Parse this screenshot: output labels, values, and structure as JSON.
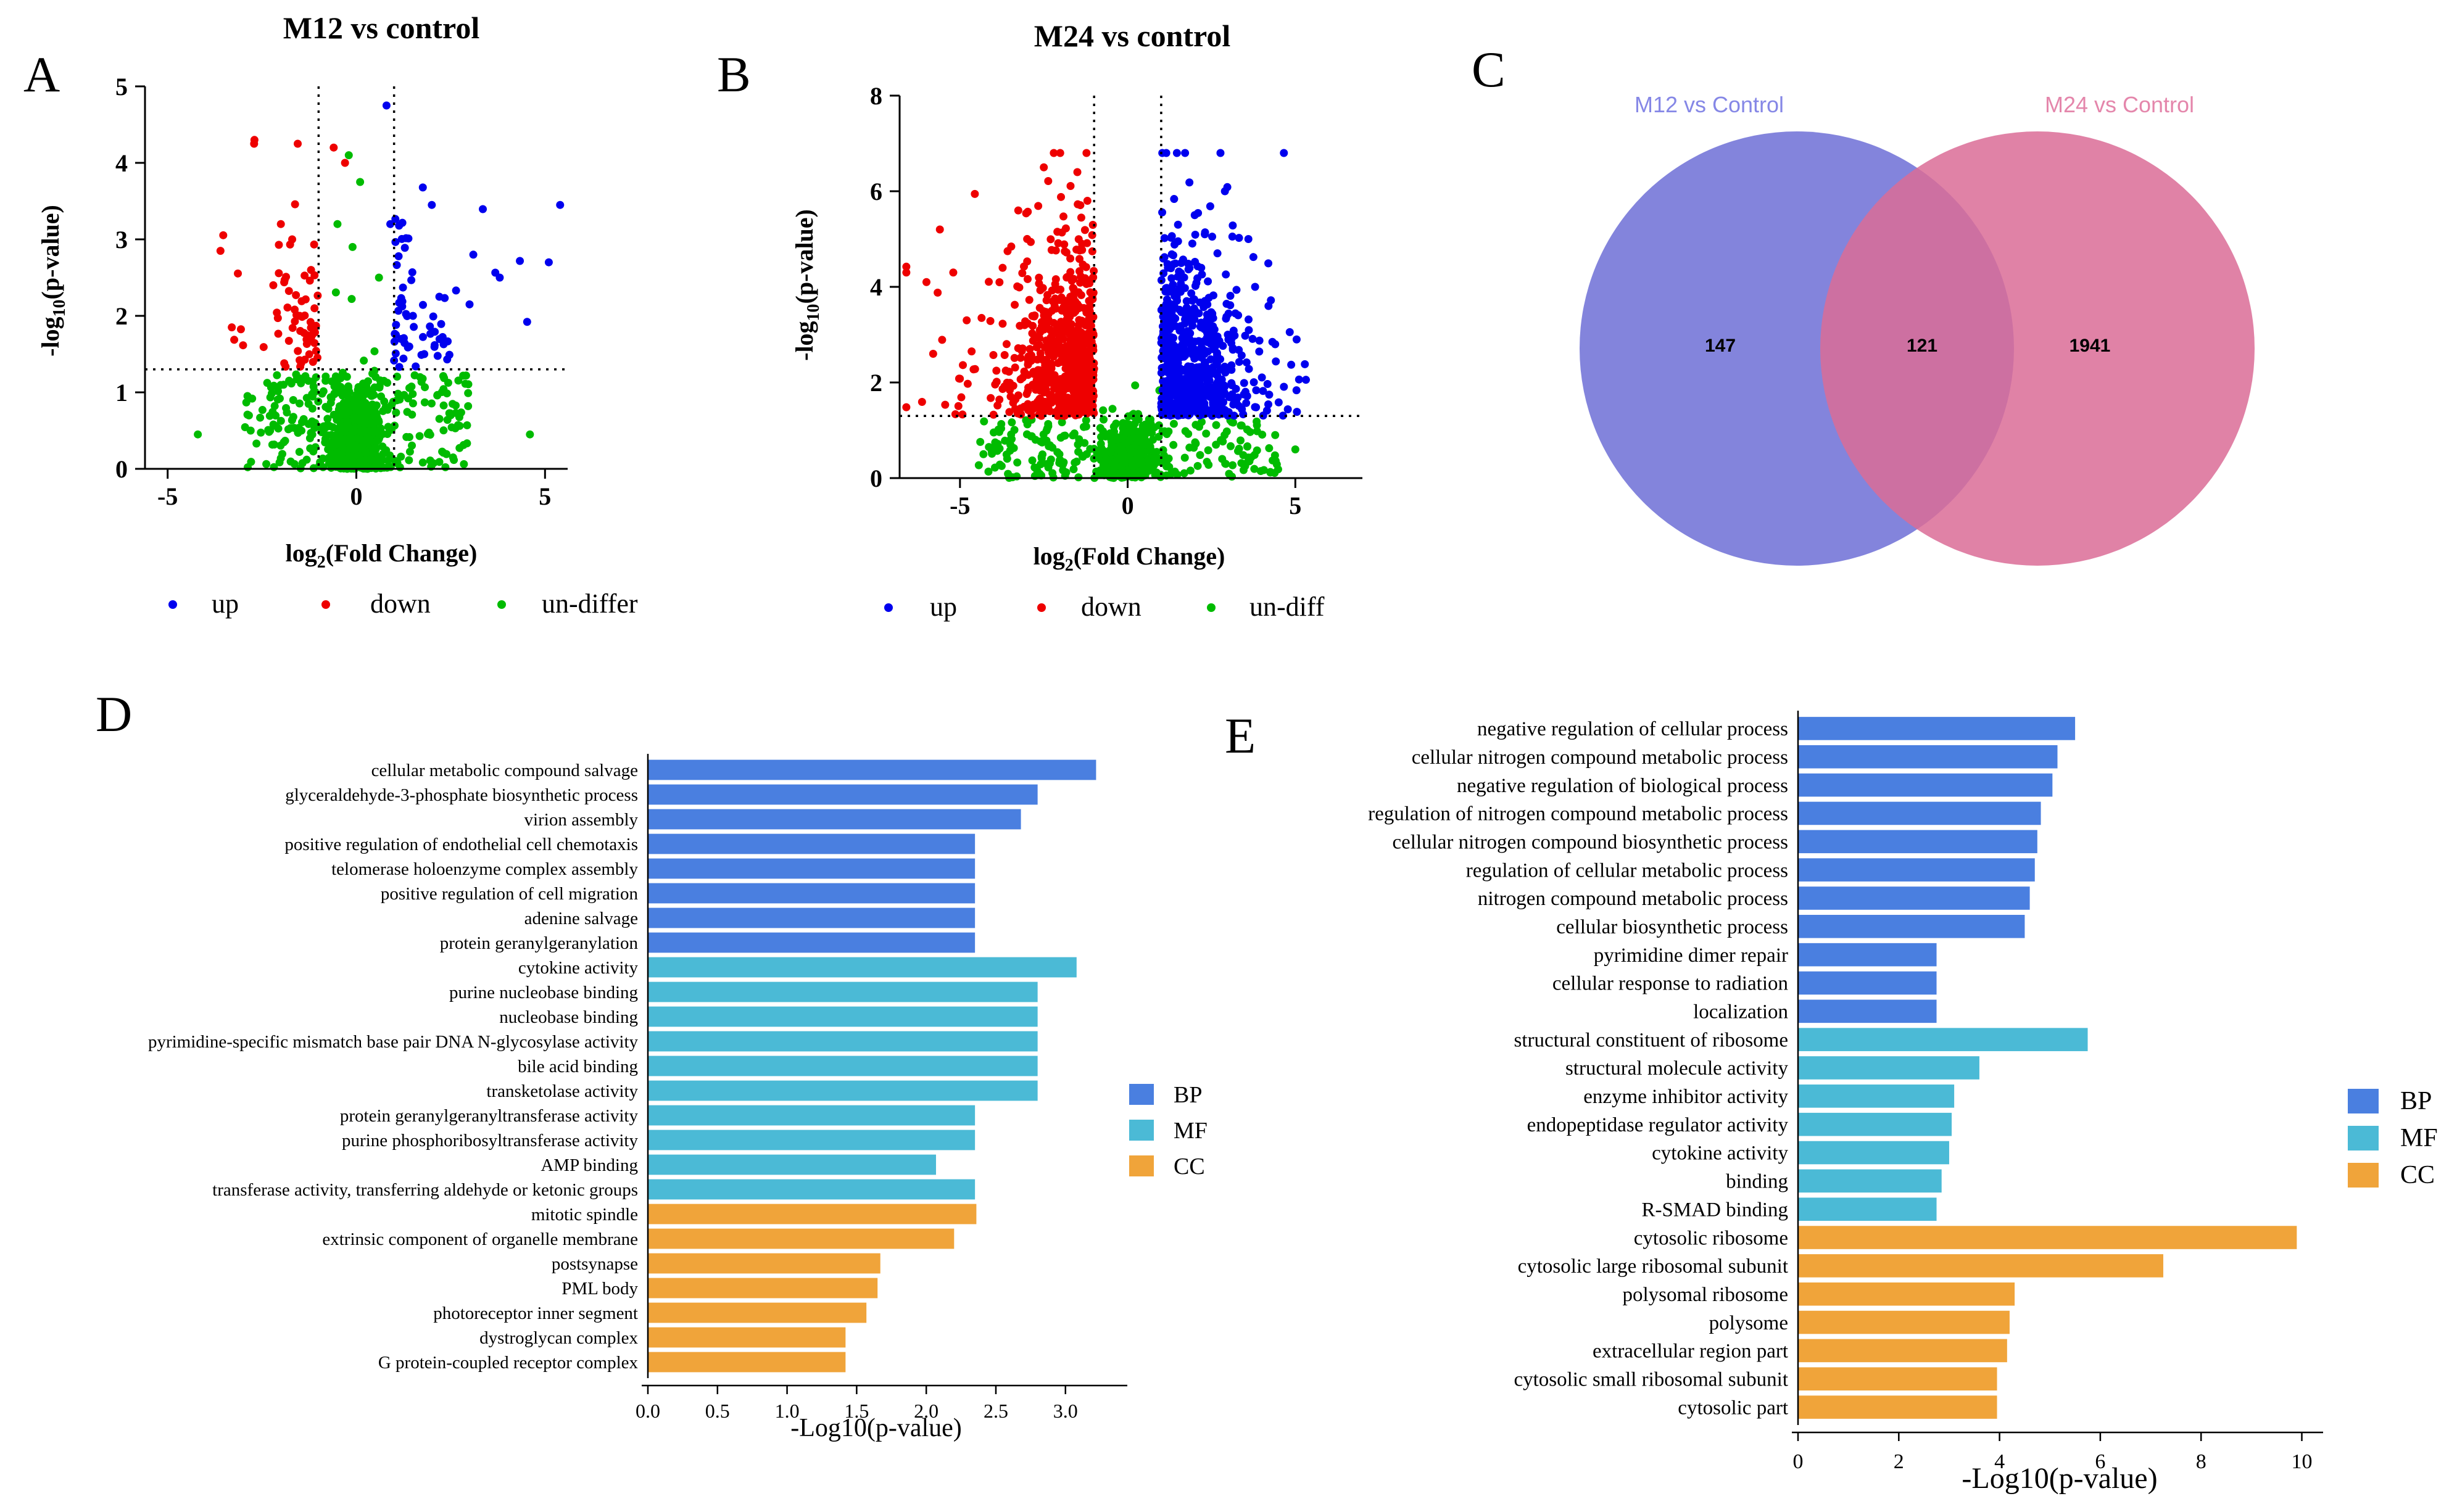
{
  "colors": {
    "up": "#0000ee",
    "down": "#ee0000",
    "undiff": "#00bb00",
    "BP": "#4a7fe0",
    "MF": "#4bbad6",
    "CC": "#f0a43a",
    "venn_left": "#6d6fd6",
    "venn_right": "#db6c96"
  },
  "panel_letters": {
    "A": "A",
    "B": "B",
    "C": "C",
    "D": "D",
    "E": "E"
  },
  "chart_data": [
    {
      "id": "A",
      "type": "scatter",
      "title": "M12  vs control",
      "xlabel": "log2(Fold Change)",
      "ylabel": "-log10(p-value)",
      "xlim": [
        -5.6,
        5.6
      ],
      "ylim": [
        0,
        5
      ],
      "xticks": [
        -5,
        0,
        5
      ],
      "yticks": [
        0,
        1,
        2,
        3,
        4,
        5
      ],
      "thresholds": {
        "fc": 1,
        "p": 1.3
      },
      "legend": [
        "up",
        "down",
        "un-differ"
      ],
      "n_up": 60,
      "n_down": 60,
      "n_undiff": 800,
      "cloud_spread": 3.0,
      "series": [
        {
          "name": "up",
          "points": [
            [
              0.8,
              4.75
            ],
            [
              2.0,
              3.45
            ],
            [
              5.4,
              3.45
            ],
            [
              3.1,
              2.8
            ],
            [
              5.1,
              2.7
            ],
            [
              3.8,
              2.5
            ],
            [
              2.2,
              2.25
            ],
            [
              3.0,
              2.15
            ],
            [
              1.8,
              1.5
            ],
            [
              1.5,
              2.0
            ],
            [
              0.9,
              3.2
            ]
          ]
        },
        {
          "name": "down",
          "points": [
            [
              -2.7,
              4.3
            ],
            [
              -0.6,
              4.2
            ],
            [
              -0.3,
              4.0
            ],
            [
              -3.6,
              2.85
            ],
            [
              -2.0,
              3.2
            ],
            [
              -1.7,
              3.0
            ],
            [
              -3.3,
              1.85
            ],
            [
              -1.5,
              2.0
            ],
            [
              -2.2,
              2.4
            ],
            [
              -1.2,
              2.6
            ]
          ]
        },
        {
          "name": "un-differ",
          "points": [
            [
              -4.2,
              0.45
            ],
            [
              4.6,
              0.45
            ],
            [
              -2.8,
              0.5
            ],
            [
              2.5,
              0.7
            ],
            [
              -0.2,
              4.1
            ],
            [
              0.1,
              3.75
            ],
            [
              -0.5,
              3.2
            ],
            [
              0.6,
              2.5
            ],
            [
              -0.1,
              2.9
            ]
          ]
        }
      ]
    },
    {
      "id": "B",
      "type": "scatter",
      "title": "M24  vs control",
      "xlabel": "log2(Fold Change)",
      "ylabel": "-log10(p-value)",
      "xlim": [
        -6.8,
        7.0
      ],
      "ylim": [
        0,
        8
      ],
      "xticks": [
        -5,
        0,
        5
      ],
      "yticks": [
        0,
        2,
        4,
        6,
        8
      ],
      "thresholds": {
        "fc": 1,
        "p": 1.3
      },
      "legend": [
        "up",
        "down",
        "un-diff"
      ],
      "n_up": 700,
      "n_down": 700,
      "n_undiff": 700,
      "cloud_spread": 4.5,
      "series": [
        {
          "name": "up",
          "points": [
            [
              2.9,
              6.0
            ],
            [
              2.3,
              5.1
            ],
            [
              3.6,
              5.0
            ],
            [
              3.8,
              4.0
            ],
            [
              4.2,
              3.6
            ],
            [
              4.4,
              2.8
            ],
            [
              2.0,
              5.5
            ],
            [
              1.2,
              4.4
            ]
          ]
        },
        {
          "name": "down",
          "points": [
            [
              -5.6,
              5.2
            ],
            [
              -6.6,
              4.3
            ],
            [
              -6.0,
              4.1
            ],
            [
              -5.2,
              4.3
            ],
            [
              -2.5,
              6.5
            ],
            [
              -1.5,
              6.4
            ],
            [
              -1.2,
              5.8
            ],
            [
              -4.8,
              3.3
            ],
            [
              -5.8,
              2.6
            ]
          ]
        },
        {
          "name": "un-diff",
          "points": [
            [
              5.0,
              0.6
            ],
            [
              4.4,
              0.9
            ],
            [
              -4.3,
              0.5
            ],
            [
              3.4,
              1.1
            ],
            [
              -3.5,
              0.8
            ]
          ]
        }
      ]
    },
    {
      "id": "C",
      "type": "venn",
      "sets": [
        {
          "label": "M12 vs Control",
          "only": "147"
        },
        {
          "label": "M24 vs Control",
          "only": "1941"
        }
      ],
      "overlap": "121"
    },
    {
      "id": "D",
      "type": "bar",
      "orientation": "horizontal",
      "xlabel": "-Log10(p-value)",
      "xlim": [
        0,
        3.4
      ],
      "xticks": [
        "0.0",
        "0.5",
        "1.0",
        "1.5",
        "2.0",
        "2.5",
        "3.0"
      ],
      "legend": [
        "BP",
        "MF",
        "CC"
      ],
      "categories": [
        "cellular metabolic compound salvage",
        "glyceraldehyde-3-phosphate biosynthetic process",
        "virion assembly",
        "positive regulation of endothelial cell chemotaxis",
        "telomerase holoenzyme complex assembly",
        "positive regulation of cell migration",
        "adenine salvage",
        "protein geranylgeranylation",
        "cytokine activity",
        "purine nucleobase binding",
        "nucleobase binding",
        "pyrimidine-specific mismatch base pair DNA N-glycosylase activity",
        "bile acid binding",
        "transketolase activity",
        "protein geranylgeranyltransferase activity",
        "purine phosphoribosyltransferase activity",
        "AMP binding",
        "transferase activity, transferring aldehyde or ketonic groups",
        "mitotic spindle",
        "extrinsic component of organelle membrane",
        "postsynapse",
        "PML body",
        "photoreceptor inner segment",
        "dystroglycan complex",
        "G protein-coupled receptor complex"
      ],
      "groups": [
        "BP",
        "BP",
        "BP",
        "BP",
        "BP",
        "BP",
        "BP",
        "BP",
        "MF",
        "MF",
        "MF",
        "MF",
        "MF",
        "MF",
        "MF",
        "MF",
        "MF",
        "MF",
        "CC",
        "CC",
        "CC",
        "CC",
        "CC",
        "CC",
        "CC"
      ],
      "values": [
        3.22,
        2.8,
        2.68,
        2.35,
        2.35,
        2.35,
        2.35,
        2.35,
        3.08,
        2.8,
        2.8,
        2.8,
        2.8,
        2.8,
        2.35,
        2.35,
        2.07,
        2.35,
        2.36,
        2.2,
        1.67,
        1.65,
        1.57,
        1.42,
        1.42
      ]
    },
    {
      "id": "E",
      "type": "bar",
      "orientation": "horizontal",
      "xlabel": "-Log10(p-value)",
      "xlim": [
        0,
        10.3
      ],
      "xticks": [
        "0",
        "2",
        "4",
        "6",
        "8",
        "10"
      ],
      "legend": [
        "BP",
        "MF",
        "CC"
      ],
      "categories": [
        "negative regulation of cellular process",
        "cellular nitrogen compound metabolic process",
        "negative regulation of biological process",
        "regulation of nitrogen compound metabolic process",
        "cellular nitrogen compound biosynthetic process",
        "regulation of cellular metabolic process",
        "nitrogen compound metabolic process",
        "cellular biosynthetic process",
        "pyrimidine dimer repair",
        "cellular response to radiation",
        "localization",
        "structural constituent of ribosome",
        "structural molecule activity",
        "enzyme inhibitor activity",
        "endopeptidase regulator activity",
        "cytokine activity",
        "binding",
        "R-SMAD binding",
        "cytosolic ribosome",
        "cytosolic large ribosomal subunit",
        "polysomal ribosome",
        "polysome",
        "extracellular region part",
        "cytosolic small ribosomal subunit",
        "cytosolic part"
      ],
      "groups": [
        "BP",
        "BP",
        "BP",
        "BP",
        "BP",
        "BP",
        "BP",
        "BP",
        "BP",
        "BP",
        "BP",
        "MF",
        "MF",
        "MF",
        "MF",
        "MF",
        "MF",
        "MF",
        "CC",
        "CC",
        "CC",
        "CC",
        "CC",
        "CC",
        "CC"
      ],
      "values": [
        5.5,
        5.15,
        5.05,
        4.82,
        4.75,
        4.7,
        4.6,
        4.5,
        2.75,
        2.75,
        2.75,
        5.75,
        3.6,
        3.1,
        3.05,
        3.0,
        2.85,
        2.75,
        9.9,
        7.25,
        4.3,
        4.2,
        4.15,
        3.95,
        3.95
      ]
    }
  ]
}
